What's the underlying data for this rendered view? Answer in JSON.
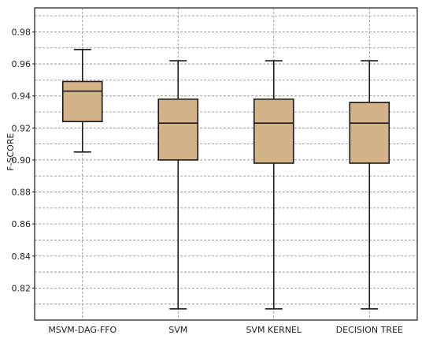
{
  "chart_data": {
    "type": "boxplot",
    "title": "",
    "xlabel": "",
    "ylabel": "F-SCORE",
    "ylim": [
      0.8,
      0.995
    ],
    "yticks": [
      "0.82",
      "0.84",
      "0.86",
      "0.88",
      "0.90",
      "0.92",
      "0.94",
      "0.96",
      "0.98"
    ],
    "grid": true,
    "categories": [
      "MSVM-DAG-FFO",
      "SVM",
      "SVM KERNEL",
      "DECISION TREE"
    ],
    "boxes": [
      {
        "name": "MSVM-DAG-FFO",
        "whisker_low": 0.905,
        "q1": 0.924,
        "median": 0.943,
        "q3": 0.949,
        "whisker_high": 0.969
      },
      {
        "name": "SVM",
        "whisker_low": 0.807,
        "q1": 0.9,
        "median": 0.923,
        "q3": 0.938,
        "whisker_high": 0.962
      },
      {
        "name": "SVM KERNEL",
        "whisker_low": 0.807,
        "q1": 0.898,
        "median": 0.923,
        "q3": 0.938,
        "whisker_high": 0.962
      },
      {
        "name": "DECISION TREE",
        "whisker_low": 0.807,
        "q1": 0.898,
        "median": 0.923,
        "q3": 0.936,
        "whisker_high": 0.962
      }
    ],
    "colors": {
      "box_fill": "#d4b38a",
      "box_stroke": "#1a1a1a",
      "grid": "#8a8a8a"
    }
  }
}
